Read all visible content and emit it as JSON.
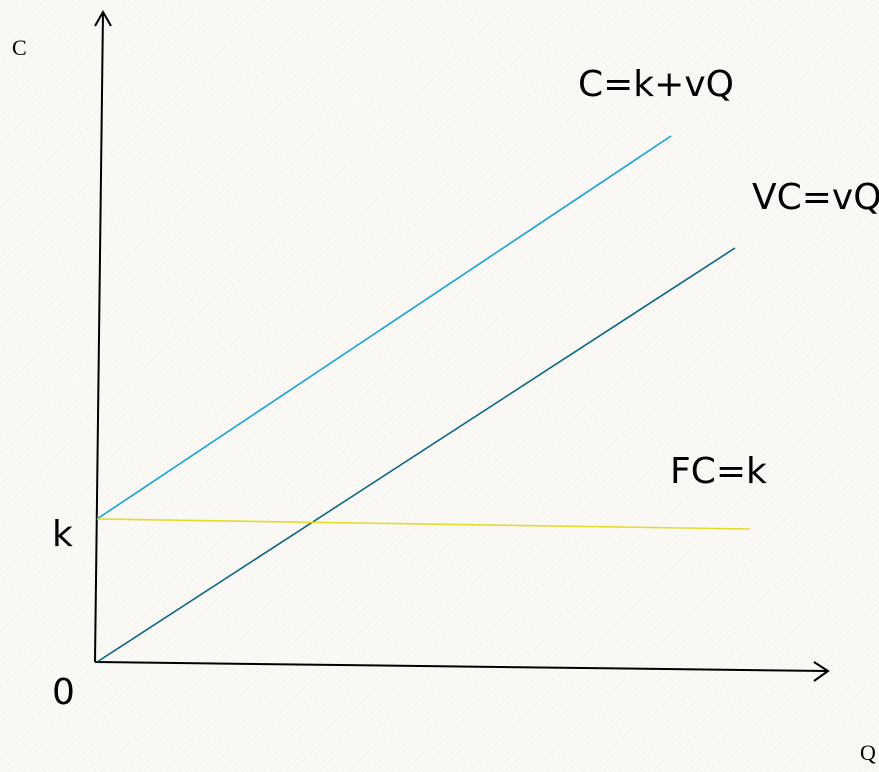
{
  "chart_data": {
    "type": "line",
    "xlabel": "Q",
    "ylabel": "C",
    "origin_label": "0",
    "intercept_label": "k",
    "series": [
      {
        "name": "C=k+vQ",
        "color": "#1aa3d6"
      },
      {
        "name": "VC=vQ",
        "color": "#0e6783"
      },
      {
        "name": "FC=k",
        "color": "#e6da2a"
      }
    ]
  },
  "colors": {
    "axis": "#000000",
    "background": "#fbfaf7"
  }
}
